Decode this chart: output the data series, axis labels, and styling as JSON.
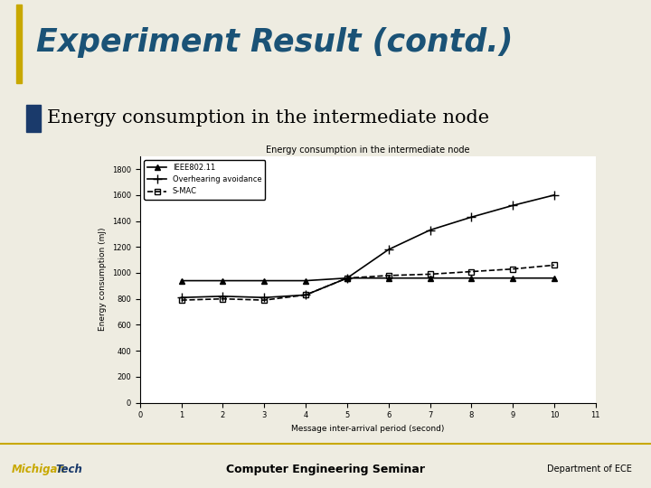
{
  "slide_title": "Experiment Result (contd.)",
  "slide_title_color": "#1a5276",
  "bullet_text": "Energy consumption in the intermediate node",
  "chart_title": "Energy consumption in the intermediate node",
  "xlabel": "Message inter-arrival period (second)",
  "ylabel": "Energy consumption (mJ)",
  "xlim": [
    0,
    11
  ],
  "ylim": [
    0,
    1900
  ],
  "yticks": [
    0,
    200,
    400,
    600,
    800,
    1000,
    1200,
    1400,
    1600,
    1800
  ],
  "xticks": [
    0,
    1,
    2,
    3,
    4,
    5,
    6,
    7,
    8,
    9,
    10,
    11
  ],
  "ieee_label": "IEEE802.11",
  "ieee_x": [
    1,
    2,
    3,
    4,
    5,
    6,
    7,
    8,
    9,
    10
  ],
  "ieee_y": [
    940,
    940,
    940,
    940,
    960,
    960,
    960,
    960,
    960,
    960
  ],
  "ieee_linestyle": "-",
  "ieee_marker": "^",
  "overhearing_label": "Overhearing avoidance",
  "overhearing_x": [
    1,
    2,
    3,
    4,
    5,
    6,
    7,
    8,
    9,
    10
  ],
  "overhearing_y": [
    810,
    820,
    810,
    830,
    960,
    1180,
    1330,
    1430,
    1520,
    1600
  ],
  "overhearing_linestyle": "-",
  "overhearing_marker": "+",
  "smac_label": "S-MAC",
  "smac_x": [
    1,
    2,
    3,
    4,
    5,
    6,
    7,
    8,
    9,
    10
  ],
  "smac_y": [
    790,
    800,
    790,
    830,
    960,
    980,
    990,
    1010,
    1030,
    1060
  ],
  "smac_linestyle": "--",
  "smac_marker": "s",
  "line_color": "black",
  "linewidth": 1.2,
  "footer_left": "Computer Engineering Seminar",
  "footer_right": "Department of ECE",
  "slide_bg": "#eeece1"
}
